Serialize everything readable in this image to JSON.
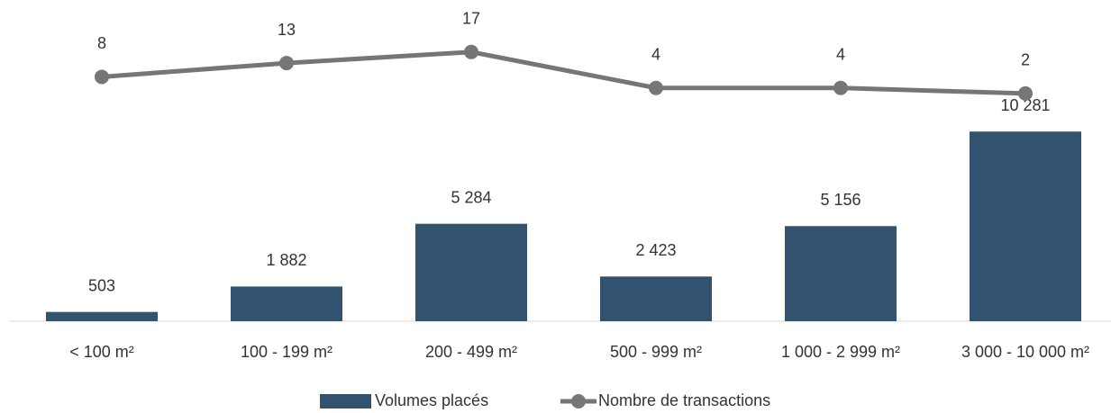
{
  "chart_data": {
    "type": "bar",
    "categories": [
      "< 100 m²",
      "100 - 199 m²",
      "200 - 499 m²",
      "500 - 999 m²",
      "1 000 - 2 999 m²",
      "3 000 - 10 000 m²"
    ],
    "series": [
      {
        "name": "Volumes placés",
        "type": "bar",
        "color": "#31536f",
        "values": [
          503,
          1882,
          5284,
          2423,
          5156,
          10281
        ],
        "value_labels": [
          "503",
          "1 882",
          "5 284",
          "2 423",
          "5 156",
          "10 281"
        ]
      },
      {
        "name": "Nombre de transactions",
        "type": "line",
        "axis": "y2",
        "color": "#767676",
        "values": [
          8,
          13,
          17,
          4,
          4,
          2
        ]
      }
    ],
    "ylim": [
      0,
      12000
    ],
    "y2lim": [
      0,
      20
    ],
    "grid": false,
    "legend": "bottom"
  }
}
